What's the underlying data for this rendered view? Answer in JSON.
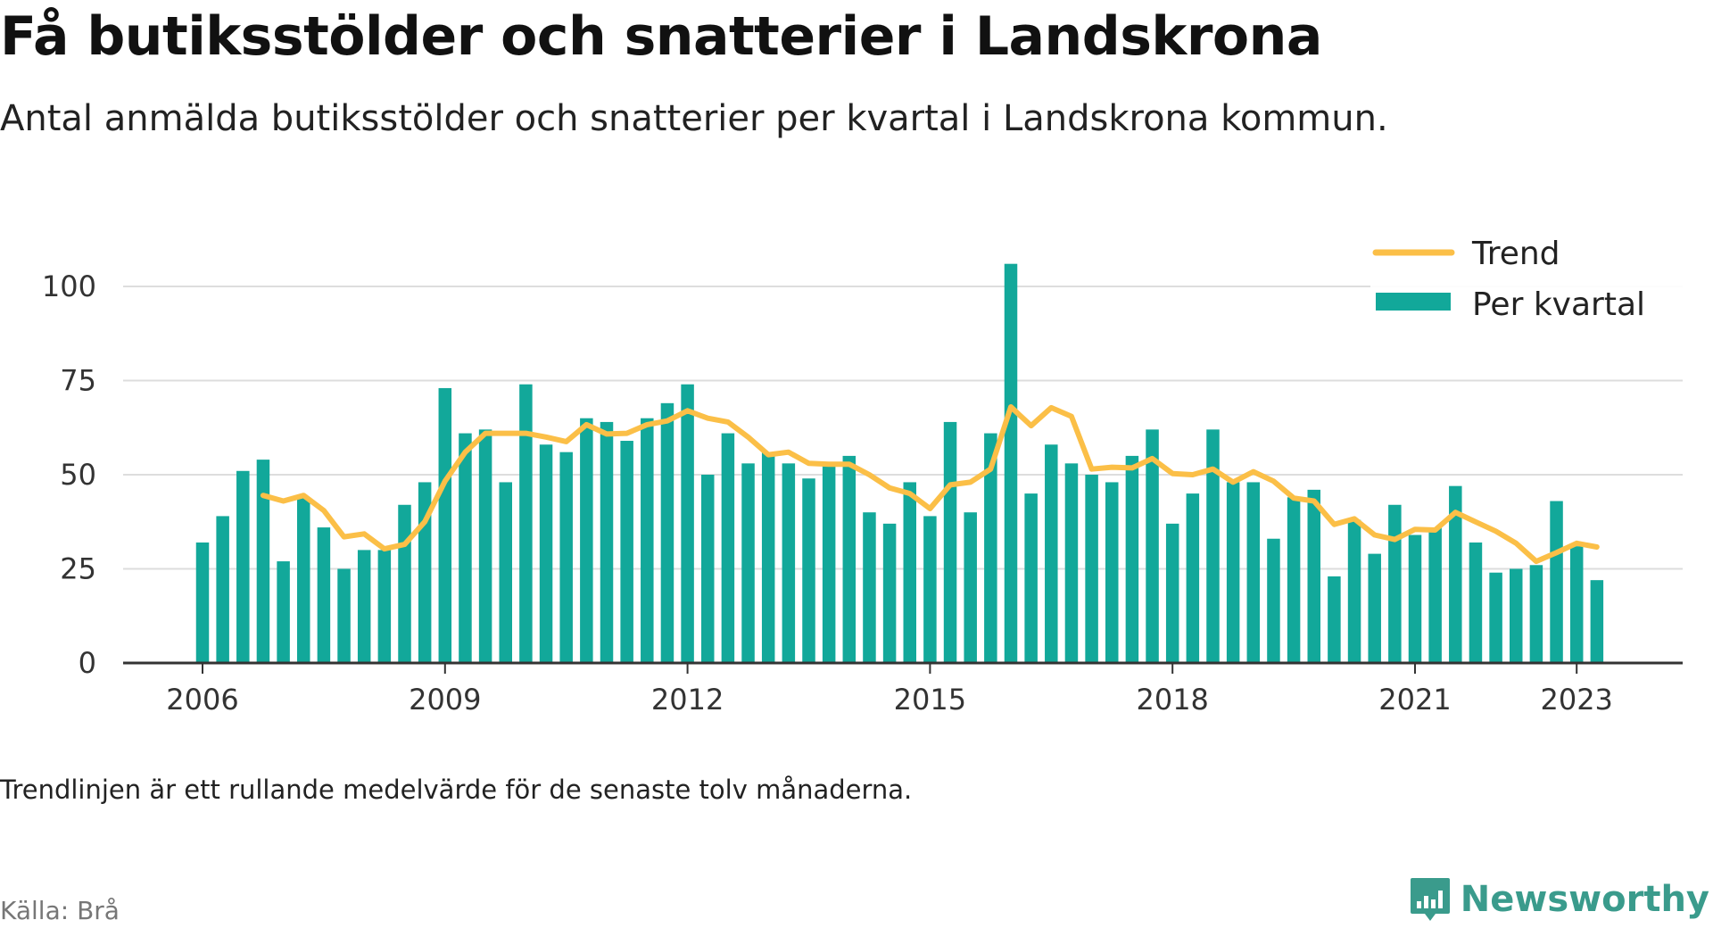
{
  "title": "Få butiksstölder och snatterier i Landskrona",
  "subtitle": "Antal anmälda butiksstölder och snatterier per kvartal i Landskrona kommun.",
  "note": "Trendlinjen är ett rullande medelvärde för de senaste tolv månaderna.",
  "source": "Källa: Brå",
  "brand": {
    "name": "Newsworthy",
    "icon": "newsworthy-logo-icon",
    "color": "#3a9b8c"
  },
  "colors": {
    "bar": "#12a89a",
    "trend": "#fbbf47",
    "grid": "#dddddd",
    "axis": "#333333"
  },
  "chart_data": {
    "type": "bar",
    "title": "Få butiksstölder och snatterier i Landskrona",
    "subtitle": "Antal anmälda butiksstölder och snatterier per kvartal i Landskrona kommun.",
    "xlabel": "",
    "ylabel": "",
    "ylim": [
      0,
      110
    ],
    "yticks": [
      0,
      25,
      50,
      75,
      100
    ],
    "xticks": [
      "2006",
      "2009",
      "2012",
      "2015",
      "2018",
      "2021",
      "2023"
    ],
    "grid": true,
    "legend_position": "top-right",
    "categories": [
      "2006 Q1",
      "2006 Q2",
      "2006 Q3",
      "2006 Q4",
      "2007 Q1",
      "2007 Q2",
      "2007 Q3",
      "2007 Q4",
      "2008 Q1",
      "2008 Q2",
      "2008 Q3",
      "2008 Q4",
      "2009 Q1",
      "2009 Q2",
      "2009 Q3",
      "2009 Q4",
      "2010 Q1",
      "2010 Q2",
      "2010 Q3",
      "2010 Q4",
      "2011 Q1",
      "2011 Q2",
      "2011 Q3",
      "2011 Q4",
      "2012 Q1",
      "2012 Q2",
      "2012 Q3",
      "2012 Q4",
      "2013 Q1",
      "2013 Q2",
      "2013 Q3",
      "2013 Q4",
      "2014 Q1",
      "2014 Q2",
      "2014 Q3",
      "2014 Q4",
      "2015 Q1",
      "2015 Q2",
      "2015 Q3",
      "2015 Q4",
      "2016 Q1",
      "2016 Q2",
      "2016 Q3",
      "2016 Q4",
      "2017 Q1",
      "2017 Q2",
      "2017 Q3",
      "2017 Q4",
      "2018 Q1",
      "2018 Q2",
      "2018 Q3",
      "2018 Q4",
      "2019 Q1",
      "2019 Q2",
      "2019 Q3",
      "2019 Q4",
      "2020 Q1",
      "2020 Q2",
      "2020 Q3",
      "2020 Q4",
      "2021 Q1",
      "2021 Q2",
      "2021 Q3",
      "2021 Q4",
      "2022 Q1",
      "2022 Q2",
      "2022 Q3",
      "2022 Q4",
      "2023 Q1",
      "2023 Q2"
    ],
    "series": [
      {
        "name": "Per kvartal",
        "type": "bar",
        "values": [
          32,
          39,
          51,
          54,
          27,
          44,
          36,
          25,
          30,
          30,
          42,
          48,
          73,
          61,
          62,
          48,
          74,
          58,
          56,
          65,
          64,
          59,
          65,
          69,
          74,
          50,
          61,
          53,
          56,
          53,
          49,
          53,
          55,
          40,
          37,
          48,
          39,
          64,
          40,
          61,
          106,
          45,
          58,
          53,
          50,
          48,
          55,
          62,
          37,
          45,
          62,
          48,
          48,
          33,
          44,
          46,
          23,
          38,
          29,
          42,
          34,
          36,
          47,
          32,
          24,
          25,
          26,
          43,
          31,
          22
        ]
      },
      {
        "name": "Trend",
        "type": "line",
        "values": [
          null,
          null,
          null,
          44.5,
          43,
          44.5,
          40.5,
          33.5,
          34.3,
          30.3,
          31.5,
          37.5,
          48.3,
          56,
          61,
          61,
          61,
          60,
          58.8,
          63.3,
          60.8,
          61,
          63.3,
          64.3,
          67,
          65,
          64,
          60,
          55.3,
          56,
          53,
          52.8,
          52.8,
          50,
          46.5,
          45,
          41,
          47.3,
          48,
          51.5,
          68,
          63,
          67.8,
          65.5,
          51.5,
          52,
          51.8,
          54.3,
          50.3,
          50,
          51.5,
          48,
          50.8,
          48.3,
          43.8,
          43,
          36.8,
          38.3,
          34,
          32.8,
          35.5,
          35.3,
          40,
          37.5,
          35,
          31.8,
          27,
          29.3,
          31.8,
          30.8
        ]
      }
    ]
  }
}
